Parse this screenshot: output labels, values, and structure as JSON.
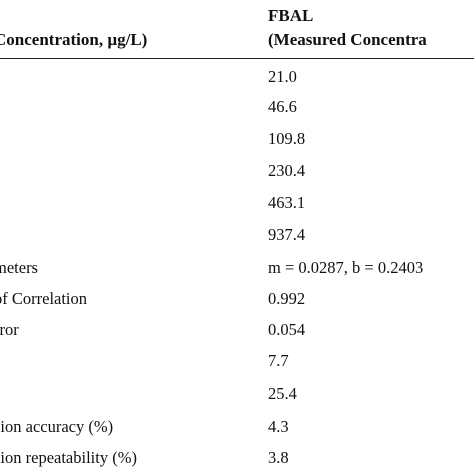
{
  "table": {
    "header": {
      "col1": "Concentration, µg/L)",
      "col2_line1": "FBAL",
      "col2_line2": "(Measured Concentra"
    },
    "rows": [
      {
        "label": "",
        "value": "21.0"
      },
      {
        "label": "",
        "value": "46.6"
      },
      {
        "label": "",
        "value": "109.8"
      },
      {
        "label": "",
        "value": "230.4"
      },
      {
        "label": "",
        "value": "463.1"
      },
      {
        "label": "",
        "value": "937.4"
      },
      {
        "label": "meters",
        "value": "m = 0.0287, b = 0.2403"
      },
      {
        "label": "of Correlation",
        "value": "0.992"
      },
      {
        "label": "rror",
        "value": "0.054"
      },
      {
        "label": ")",
        "value": "7.7"
      },
      {
        "label": ")",
        "value": "25.4"
      },
      {
        "label": "sion accuracy (%)",
        "value": "4.3"
      },
      {
        "label": "sion repeatability (%)",
        "value": "3.8"
      }
    ]
  }
}
